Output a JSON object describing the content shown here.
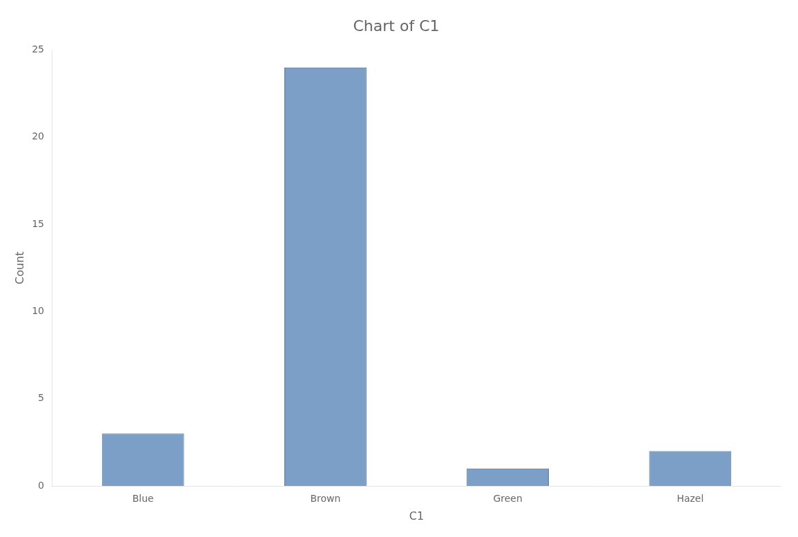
{
  "chart_data": {
    "type": "bar",
    "title": "Chart of C1",
    "xlabel": "C1",
    "ylabel": "Count",
    "categories": [
      "Blue",
      "Brown",
      "Green",
      "Hazel"
    ],
    "values": [
      3,
      24,
      1,
      2
    ],
    "color": "#7B9FC7",
    "ylim": [
      0,
      25
    ],
    "yticks": [
      0,
      5,
      10,
      15,
      20,
      25
    ],
    "grid": false
  }
}
